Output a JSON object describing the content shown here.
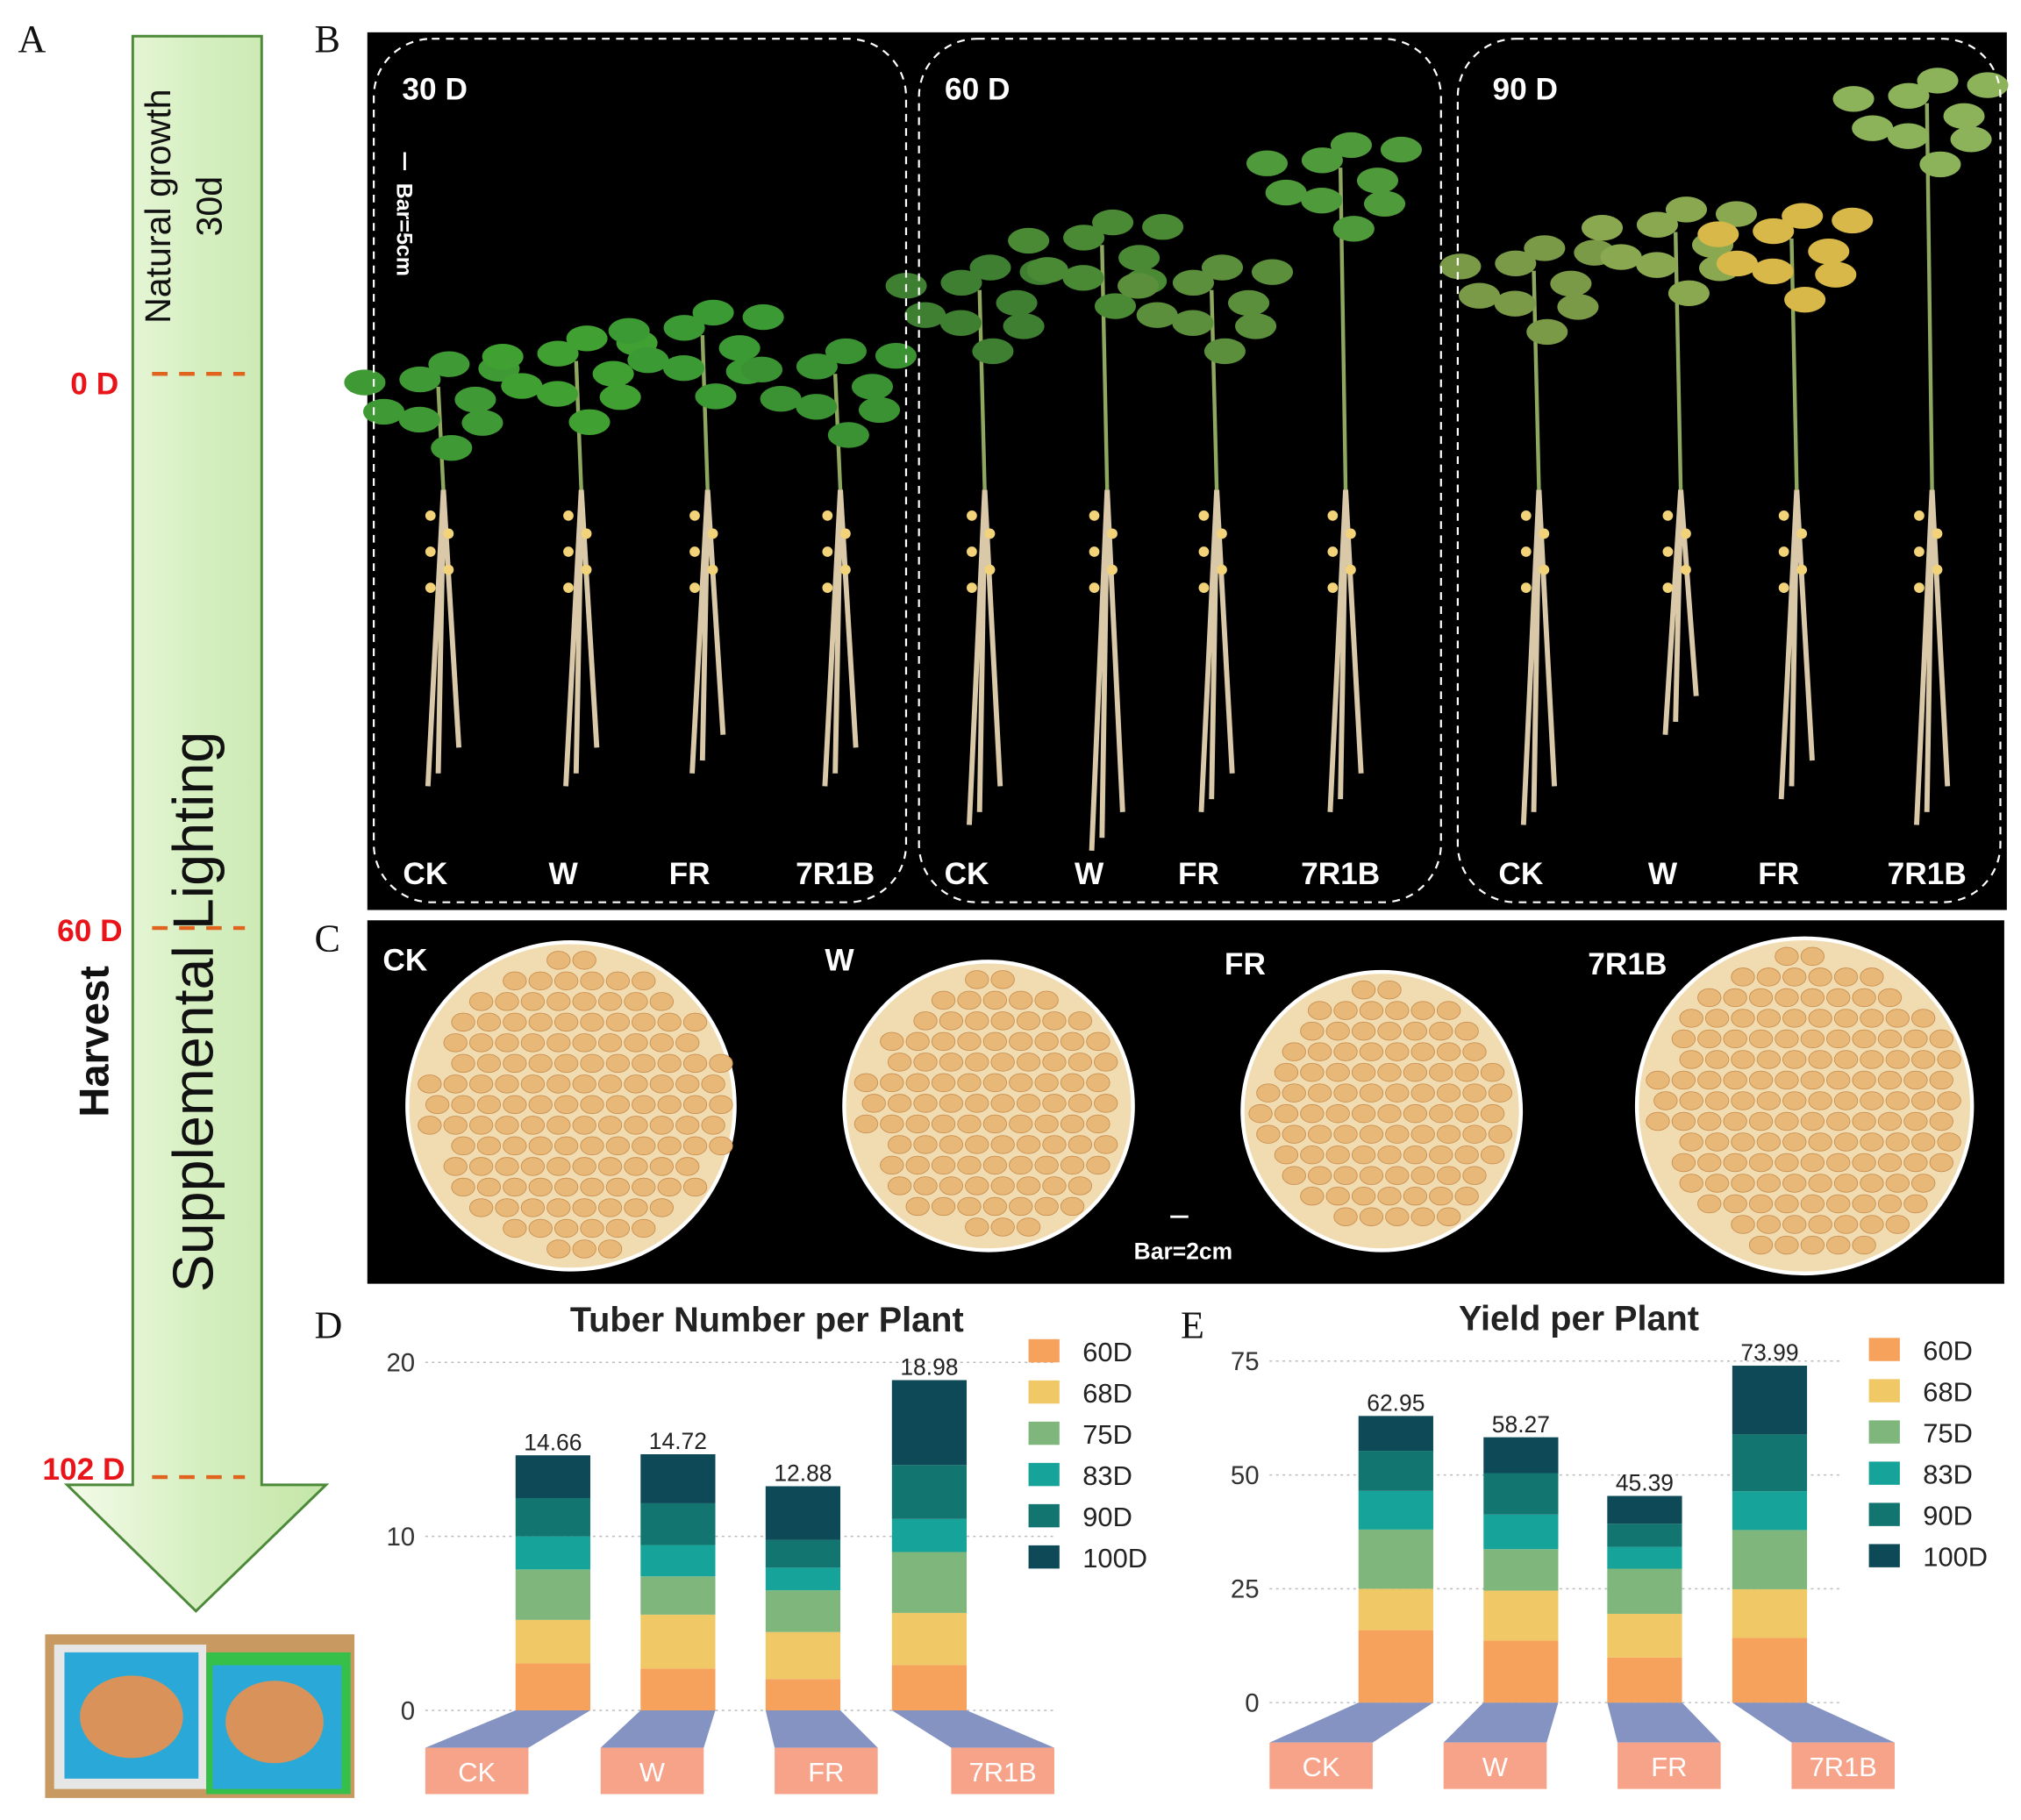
{
  "panels": [
    "A",
    "B",
    "C",
    "D",
    "E"
  ],
  "timeline": {
    "natural": "Natural growth",
    "natural_days": "30d",
    "lighting": "Supplemental Lighting",
    "harvest": "Harvest",
    "marks": [
      "0 D",
      "60 D",
      "102 D"
    ]
  },
  "plants": {
    "stages": [
      "30 D",
      "60 D",
      "90 D"
    ],
    "treatments": [
      "CK",
      "W",
      "FR",
      "7R1B"
    ],
    "scale": "Bar=5cm"
  },
  "tubers": {
    "treatments": [
      "CK",
      "W",
      "FR",
      "7R1B"
    ],
    "scale": "Bar=2cm"
  },
  "chart_data": [
    {
      "type": "stacked_bar",
      "title": "Tuber Number per Plant",
      "categories": [
        "CK",
        "W",
        "FR",
        "7R1B"
      ],
      "series": [
        {
          "name": "60D",
          "color": "#f6a15c",
          "values": [
            2.7,
            2.4,
            1.8,
            2.6
          ]
        },
        {
          "name": "68D",
          "color": "#f0c865",
          "values": [
            2.5,
            3.1,
            2.7,
            3.0
          ]
        },
        {
          "name": "75D",
          "color": "#7fb67b",
          "values": [
            2.9,
            2.2,
            2.4,
            3.5
          ]
        },
        {
          "name": "83D",
          "color": "#16a399",
          "values": [
            1.9,
            1.8,
            1.3,
            1.9
          ]
        },
        {
          "name": "90D",
          "color": "#13756f",
          "values": [
            2.2,
            2.4,
            1.6,
            3.1
          ]
        },
        {
          "name": "100D",
          "color": "#0d4957",
          "values": [
            2.46,
            2.82,
            3.08,
            4.88
          ]
        }
      ],
      "totals": [
        14.66,
        14.72,
        12.88,
        18.98
      ],
      "ylim": [
        0,
        20
      ],
      "yticks": [
        0,
        10,
        20
      ],
      "grid": true
    },
    {
      "type": "stacked_bar",
      "title": "Yield per Plant",
      "categories": [
        "CK",
        "W",
        "FR",
        "7R1B"
      ],
      "series": [
        {
          "name": "60D",
          "color": "#f6a15c",
          "values": [
            15.9,
            13.6,
            9.9,
            14.2
          ]
        },
        {
          "name": "68D",
          "color": "#f0c865",
          "values": [
            9.1,
            11.0,
            9.6,
            10.7
          ]
        },
        {
          "name": "75D",
          "color": "#7fb67b",
          "values": [
            13.0,
            9.1,
            9.9,
            13.0
          ]
        },
        {
          "name": "83D",
          "color": "#16a399",
          "values": [
            8.5,
            7.6,
            4.8,
            8.5
          ]
        },
        {
          "name": "90D",
          "color": "#13756f",
          "values": [
            8.8,
            9.1,
            5.1,
            12.5
          ]
        },
        {
          "name": "100D",
          "color": "#0d4957",
          "values": [
            7.65,
            7.87,
            6.09,
            15.09
          ]
        }
      ],
      "totals": [
        62.95,
        58.27,
        45.39,
        73.99
      ],
      "ylim": [
        0,
        75
      ],
      "yticks": [
        0,
        25,
        50,
        75
      ],
      "grid": true
    }
  ]
}
